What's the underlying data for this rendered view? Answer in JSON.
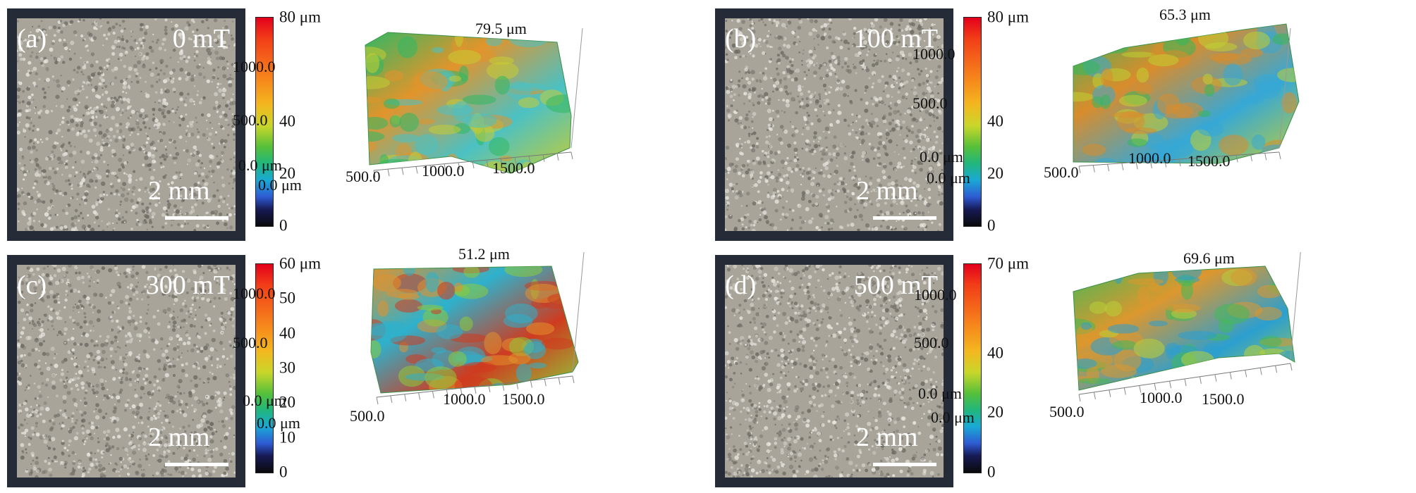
{
  "panels": [
    {
      "label": "(a)",
      "field": "0 mT",
      "scale_bar": "2 mm",
      "colorbar": {
        "ticks": [
          "80 μm",
          "40",
          "20",
          "0"
        ],
        "levels": [
          1,
          0.5,
          0.25,
          0
        ]
      },
      "surface_max": "79.5 μm",
      "y_axis": [
        "1000.0",
        "500.0",
        "0.0 μm"
      ],
      "x_axis": [
        "0.0 μm",
        "500.0",
        "1000.0",
        "1500.0"
      ],
      "surface_colors": [
        "#2fb864",
        "#e2942b",
        "#4bc1c4",
        "#c6cc33"
      ]
    },
    {
      "label": "(b)",
      "field": "100 mT",
      "scale_bar": "2 mm",
      "colorbar": {
        "ticks": [
          "80 μm",
          "40",
          "20",
          "0"
        ],
        "levels": [
          1,
          0.5,
          0.25,
          0
        ]
      },
      "surface_max": "65.3 μm",
      "y_axis": [
        "1000.0",
        "500.0",
        "0.0 μm"
      ],
      "x_axis": [
        "0.0 μm",
        "500.0",
        "1000.0",
        "1500.0"
      ],
      "surface_colors": [
        "#34b85b",
        "#d98c2c",
        "#36a8d6",
        "#c0cf33"
      ]
    },
    {
      "label": "(c)",
      "field": "300 mT",
      "scale_bar": "2 mm",
      "colorbar": {
        "ticks": [
          "60 μm",
          "50",
          "40",
          "30",
          "20",
          "10",
          "0"
        ],
        "levels": [
          1,
          0.8333,
          0.6667,
          0.5,
          0.3333,
          0.1667,
          0
        ]
      },
      "surface_max": "51.2 μm",
      "y_axis": [
        "1000.0",
        "500.0",
        "0.0 μm"
      ],
      "x_axis": [
        "0.0 μm",
        "500.0",
        "1000.0",
        "1500.0"
      ],
      "surface_colors": [
        "#e1922d",
        "#2eb1cc",
        "#cf3b1f",
        "#8ecb3a"
      ]
    },
    {
      "label": "(d)",
      "field": "500 mT",
      "scale_bar": "2 mm",
      "colorbar": {
        "ticks": [
          "70 μm",
          "40",
          "20",
          "0"
        ],
        "levels": [
          1,
          0.5714,
          0.2857,
          0
        ]
      },
      "surface_max": "69.6 μm",
      "y_axis": [
        "1000.0",
        "500.0",
        "0.0 μm"
      ],
      "x_axis": [
        "0.0 μm",
        "500.0",
        "1000.0",
        "1500.0"
      ],
      "surface_colors": [
        "#43b957",
        "#dc972e",
        "#2b9fd0",
        "#b8cf38"
      ]
    }
  ]
}
